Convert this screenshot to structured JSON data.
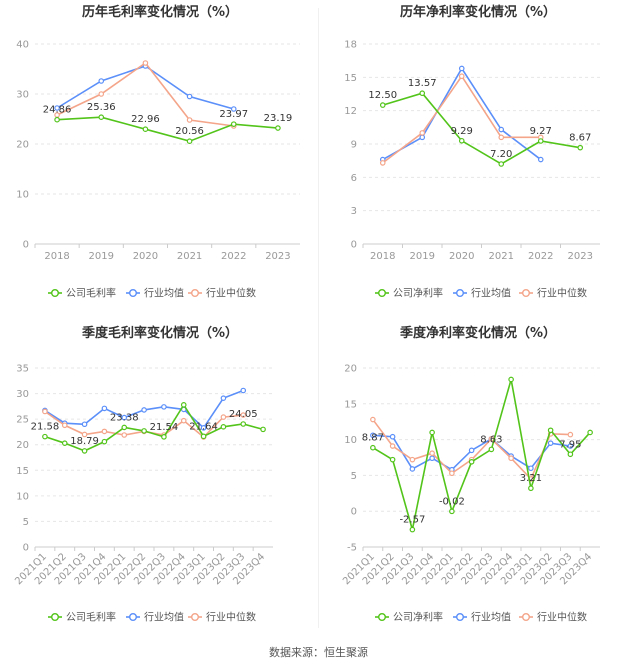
{
  "source_label": "数据来源：恒生聚源",
  "colors": {
    "company": "#52c41a",
    "avg": "#5b8ff9",
    "median": "#f4a58a",
    "grid": "#e6e6e6",
    "axis_text": "#999999",
    "label_text": "#333333"
  },
  "chart_data": [
    {
      "type": "line",
      "title": "历年毛利率变化情况（%）",
      "categories": [
        "2018",
        "2019",
        "2020",
        "2021",
        "2022",
        "2023"
      ],
      "ylim": [
        0,
        40
      ],
      "yticks": [
        0,
        10,
        20,
        30,
        40
      ],
      "grid": true,
      "legend_position": "bottom",
      "series": [
        {
          "name": "公司毛利率",
          "color_key": "company",
          "values": [
            24.86,
            25.36,
            22.96,
            20.56,
            23.97,
            23.19
          ],
          "labels": [
            "24.86",
            "25.36",
            "22.96",
            "20.56",
            "23.97",
            "23.19"
          ]
        },
        {
          "name": "行业均值",
          "color_key": "avg",
          "values": [
            27.2,
            32.6,
            35.6,
            29.5,
            27.0,
            null
          ]
        },
        {
          "name": "行业中位数",
          "color_key": "median",
          "values": [
            25.8,
            30.0,
            36.2,
            24.8,
            23.6,
            null
          ]
        }
      ]
    },
    {
      "type": "line",
      "title": "历年净利率变化情况（%）",
      "categories": [
        "2018",
        "2019",
        "2020",
        "2021",
        "2022",
        "2023"
      ],
      "ylim": [
        0,
        18
      ],
      "yticks": [
        0,
        3,
        6,
        9,
        12,
        15,
        18
      ],
      "grid": true,
      "legend_position": "bottom",
      "series": [
        {
          "name": "公司净利率",
          "color_key": "company",
          "values": [
            12.5,
            13.57,
            9.29,
            7.2,
            9.27,
            8.67
          ],
          "labels": [
            "12.50",
            "13.57",
            "9.29",
            "7.20",
            "9.27",
            "8.67"
          ]
        },
        {
          "name": "行业均值",
          "color_key": "avg",
          "values": [
            7.6,
            9.6,
            15.8,
            10.3,
            7.6,
            null
          ]
        },
        {
          "name": "行业中位数",
          "color_key": "median",
          "values": [
            7.3,
            10.0,
            15.1,
            9.6,
            9.6,
            null
          ]
        }
      ]
    },
    {
      "type": "line",
      "title": "季度毛利率变化情况（%）",
      "categories": [
        "2021Q1",
        "2021Q2",
        "2021Q3",
        "2021Q4",
        "2022Q1",
        "2022Q2",
        "2022Q3",
        "2022Q4",
        "2023Q1",
        "2023Q2",
        "2023Q3",
        "2023Q4"
      ],
      "ylim": [
        0,
        35
      ],
      "yticks": [
        0,
        5,
        10,
        15,
        20,
        25,
        30,
        35
      ],
      "grid": true,
      "legend_position": "bottom",
      "series": [
        {
          "name": "公司毛利率",
          "color_key": "company",
          "values": [
            21.58,
            20.3,
            18.79,
            20.6,
            23.38,
            22.7,
            21.54,
            27.8,
            21.64,
            23.5,
            24.05,
            23.0
          ],
          "labels": [
            "21.58",
            "",
            "18.79",
            "",
            "23.38",
            "",
            "21.54",
            "",
            "21.64",
            "",
            "24.05",
            ""
          ]
        },
        {
          "name": "行业均值",
          "color_key": "avg",
          "values": [
            26.7,
            24.2,
            24.0,
            27.1,
            25.3,
            26.8,
            27.4,
            26.9,
            23.3,
            29.1,
            30.6,
            null
          ]
        },
        {
          "name": "行业中位数",
          "color_key": "median",
          "values": [
            26.5,
            23.8,
            22.0,
            22.6,
            21.9,
            22.6,
            21.9,
            24.7,
            21.5,
            25.4,
            25.8,
            null
          ]
        }
      ]
    },
    {
      "type": "line",
      "title": "季度净利率变化情况（%）",
      "categories": [
        "2021Q1",
        "2021Q2",
        "2021Q3",
        "2021Q4",
        "2022Q1",
        "2022Q2",
        "2022Q3",
        "2022Q4",
        "2023Q1",
        "2023Q2",
        "2023Q3",
        "2023Q4"
      ],
      "ylim": [
        -5,
        20
      ],
      "yticks": [
        -5,
        0,
        5,
        10,
        15,
        20
      ],
      "grid": true,
      "legend_position": "bottom",
      "series": [
        {
          "name": "公司净利率",
          "color_key": "company",
          "values": [
            8.87,
            7.2,
            -2.57,
            11.0,
            -0.02,
            6.9,
            8.63,
            18.4,
            3.21,
            11.3,
            7.95,
            11.0
          ],
          "labels": [
            "8.87",
            "",
            "-2.57",
            "",
            "-0.02",
            "",
            "8.63",
            "",
            "3.21",
            "",
            "7.95",
            ""
          ]
        },
        {
          "name": "行业均值",
          "color_key": "avg",
          "values": [
            10.6,
            10.4,
            5.9,
            7.4,
            5.8,
            8.5,
            10.1,
            7.7,
            6.0,
            9.5,
            9.1,
            null
          ]
        },
        {
          "name": "行业中位数",
          "color_key": "median",
          "values": [
            12.8,
            9.1,
            7.2,
            8.1,
            5.3,
            7.2,
            10.1,
            7.4,
            4.5,
            10.8,
            10.7,
            null
          ]
        }
      ]
    }
  ]
}
